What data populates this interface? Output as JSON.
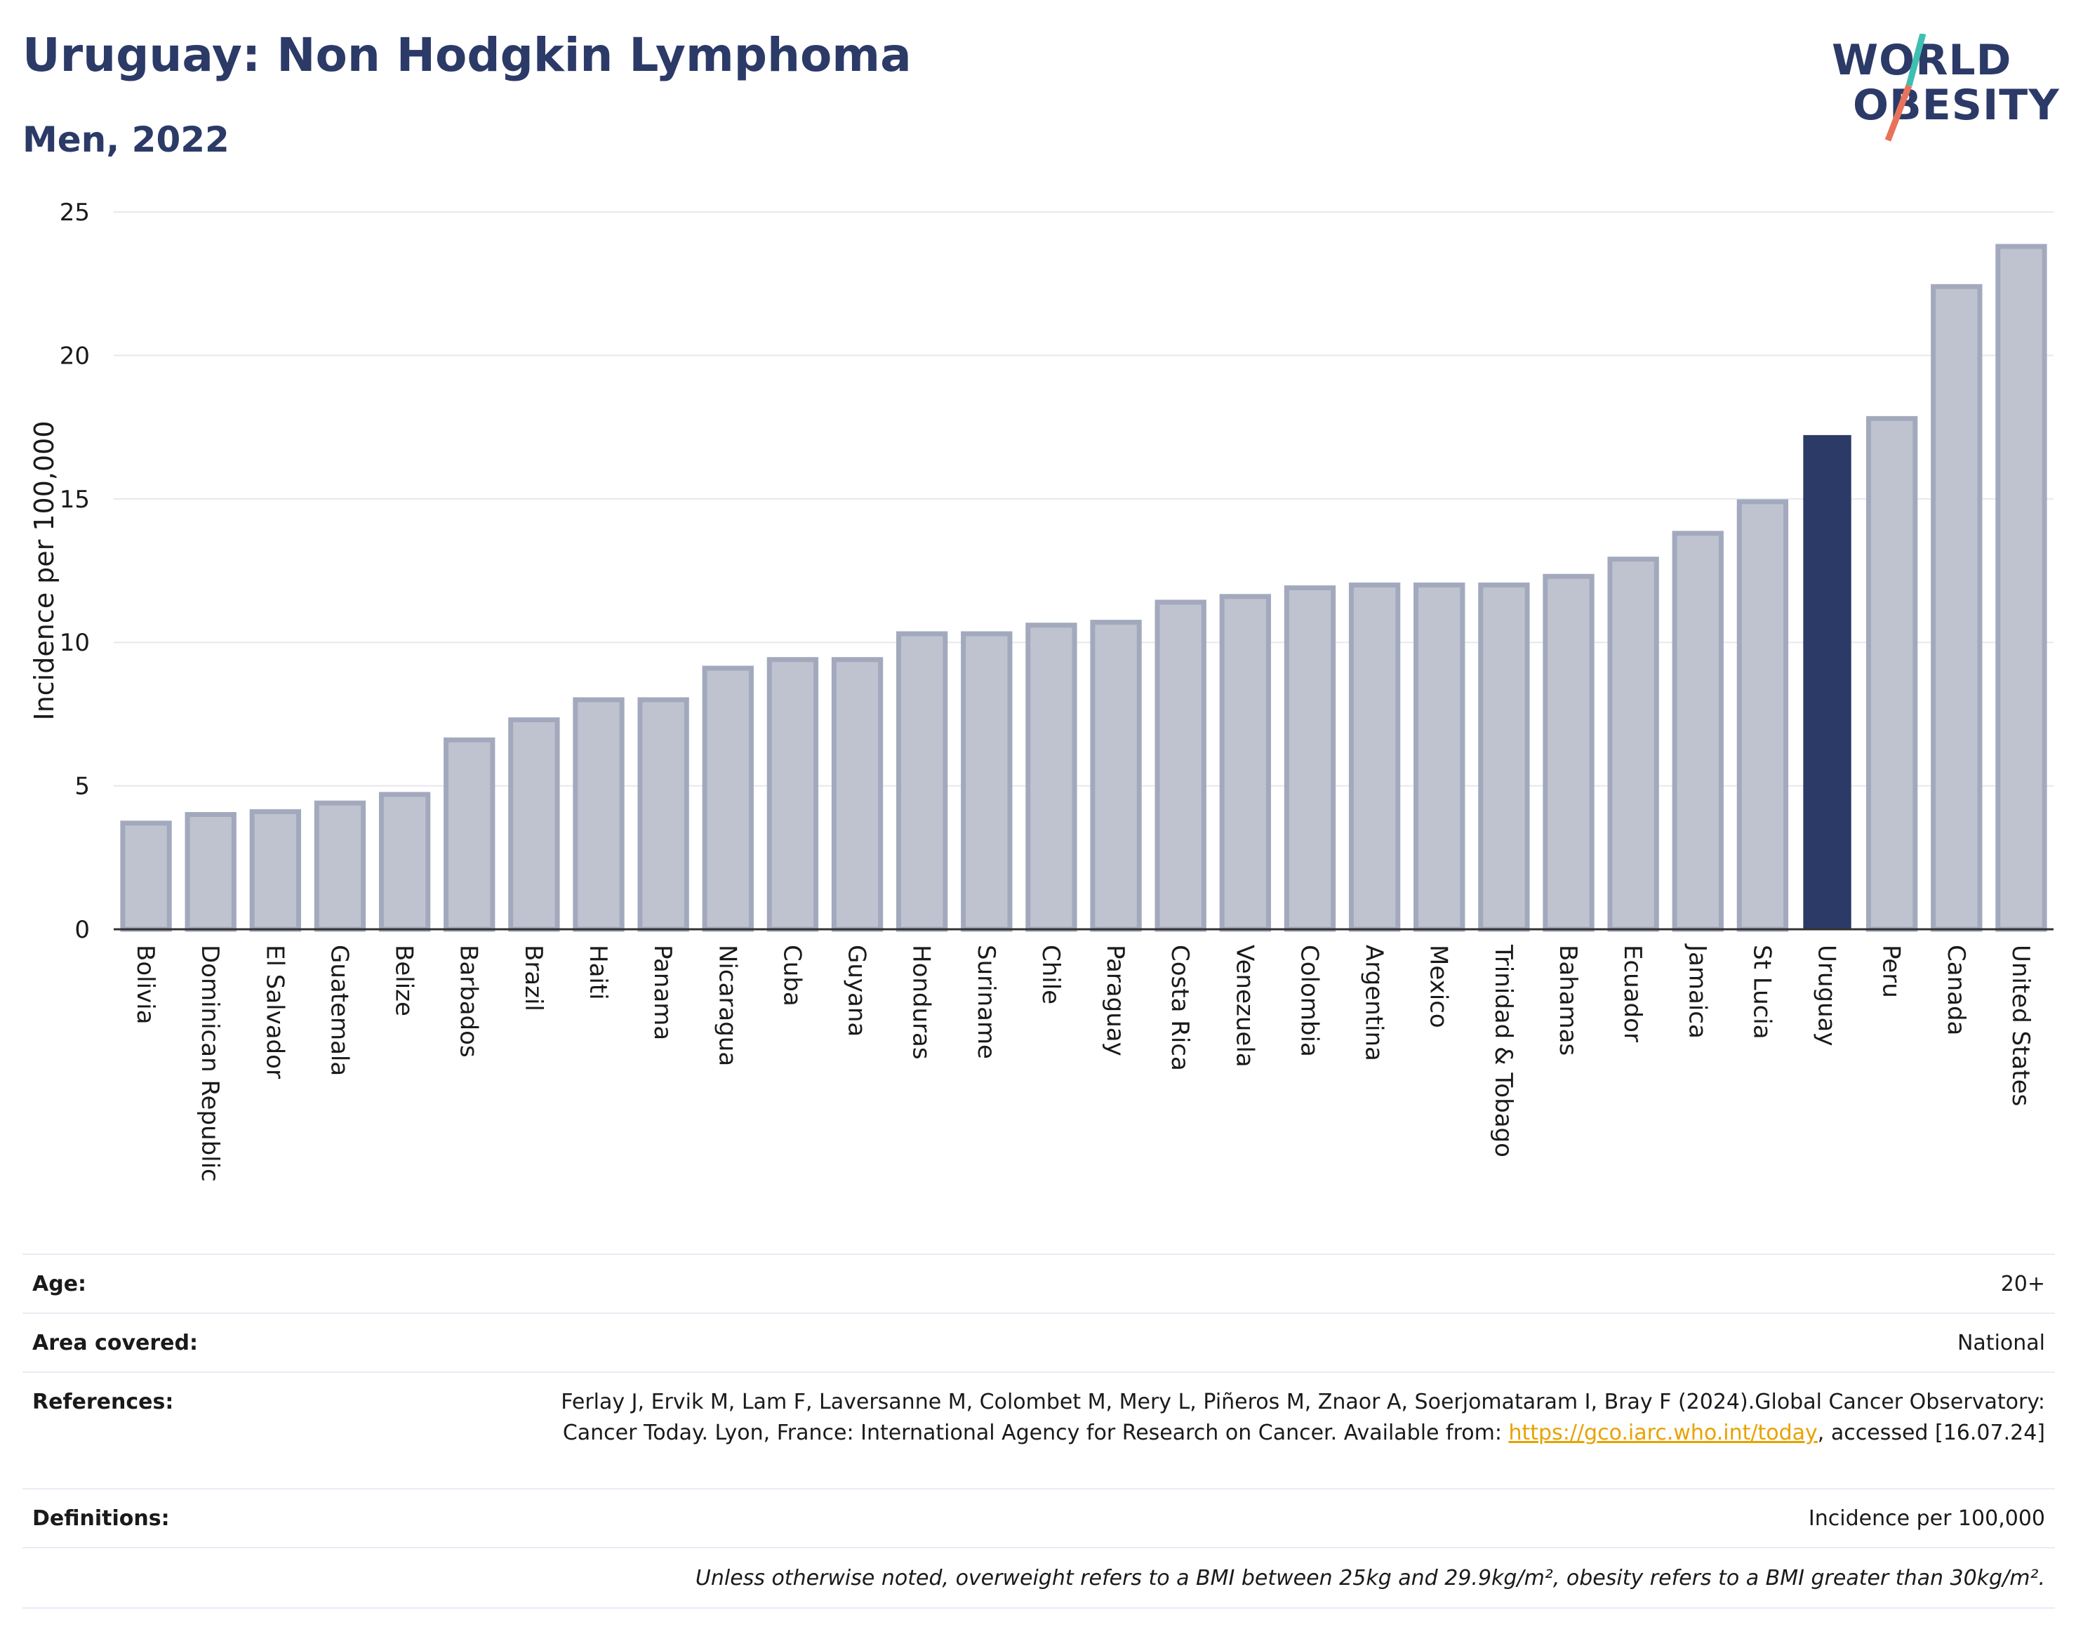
{
  "header": {
    "title": "Uruguay: Non Hodgkin Lymphoma",
    "subtitle": "Men, 2022"
  },
  "logo": {
    "line1": "WORLD",
    "line2": "OBESITY"
  },
  "colors": {
    "highlight": "#2b3a67",
    "bar": "#bfc3d0",
    "bar_border": "#a3a9bd",
    "accent_teal": "#3fbfb2",
    "accent_coral": "#e8735a"
  },
  "chart_data": {
    "type": "bar",
    "ylabel": "Incidence per 100,000",
    "ylim": [
      0,
      25
    ],
    "yticks": [
      0,
      5,
      10,
      15,
      20,
      25
    ],
    "grid": true,
    "highlight": "Uruguay",
    "categories": [
      "Bolivia",
      "Dominican Republic",
      "El Salvador",
      "Guatemala",
      "Belize",
      "Barbados",
      "Brazil",
      "Haiti",
      "Panama",
      "Nicaragua",
      "Cuba",
      "Guyana",
      "Honduras",
      "Suriname",
      "Chile",
      "Paraguay",
      "Costa Rica",
      "Venezuela",
      "Colombia",
      "Argentina",
      "Mexico",
      "Trinidad & Tobago",
      "Bahamas",
      "Ecuador",
      "Jamaica",
      "St Lucia",
      "Uruguay",
      "Peru",
      "Canada",
      "United States"
    ],
    "values": [
      3.7,
      4.0,
      4.1,
      4.4,
      4.7,
      6.6,
      7.3,
      8.0,
      8.0,
      9.1,
      9.4,
      9.4,
      10.3,
      10.3,
      10.6,
      10.7,
      11.4,
      11.6,
      11.9,
      12.0,
      12.0,
      12.0,
      12.3,
      12.9,
      13.8,
      14.9,
      17.2,
      17.8,
      22.4,
      23.8
    ]
  },
  "info": {
    "age_label": "Age:",
    "age_value": "20+",
    "area_label": "Area covered:",
    "area_value": "National",
    "references_label": "References:",
    "references_text": "Ferlay J, Ervik M, Lam F, Laversanne M, Colombet M, Mery L, Piñeros M, Znaor A, Soerjomataram I, Bray F (2024).Global Cancer Observatory: Cancer Today. Lyon, France: International Agency for Research on Cancer. Available from: ",
    "references_link": "https://gco.iarc.who.int/today",
    "references_tail": ", accessed [16.07.24]",
    "definitions_label": "Definitions:",
    "definitions_value": "Incidence per 100,000",
    "note": "Unless otherwise noted, overweight refers to a BMI between 25kg and 29.9kg/m², obesity refers to a BMI greater than 30kg/m²."
  }
}
